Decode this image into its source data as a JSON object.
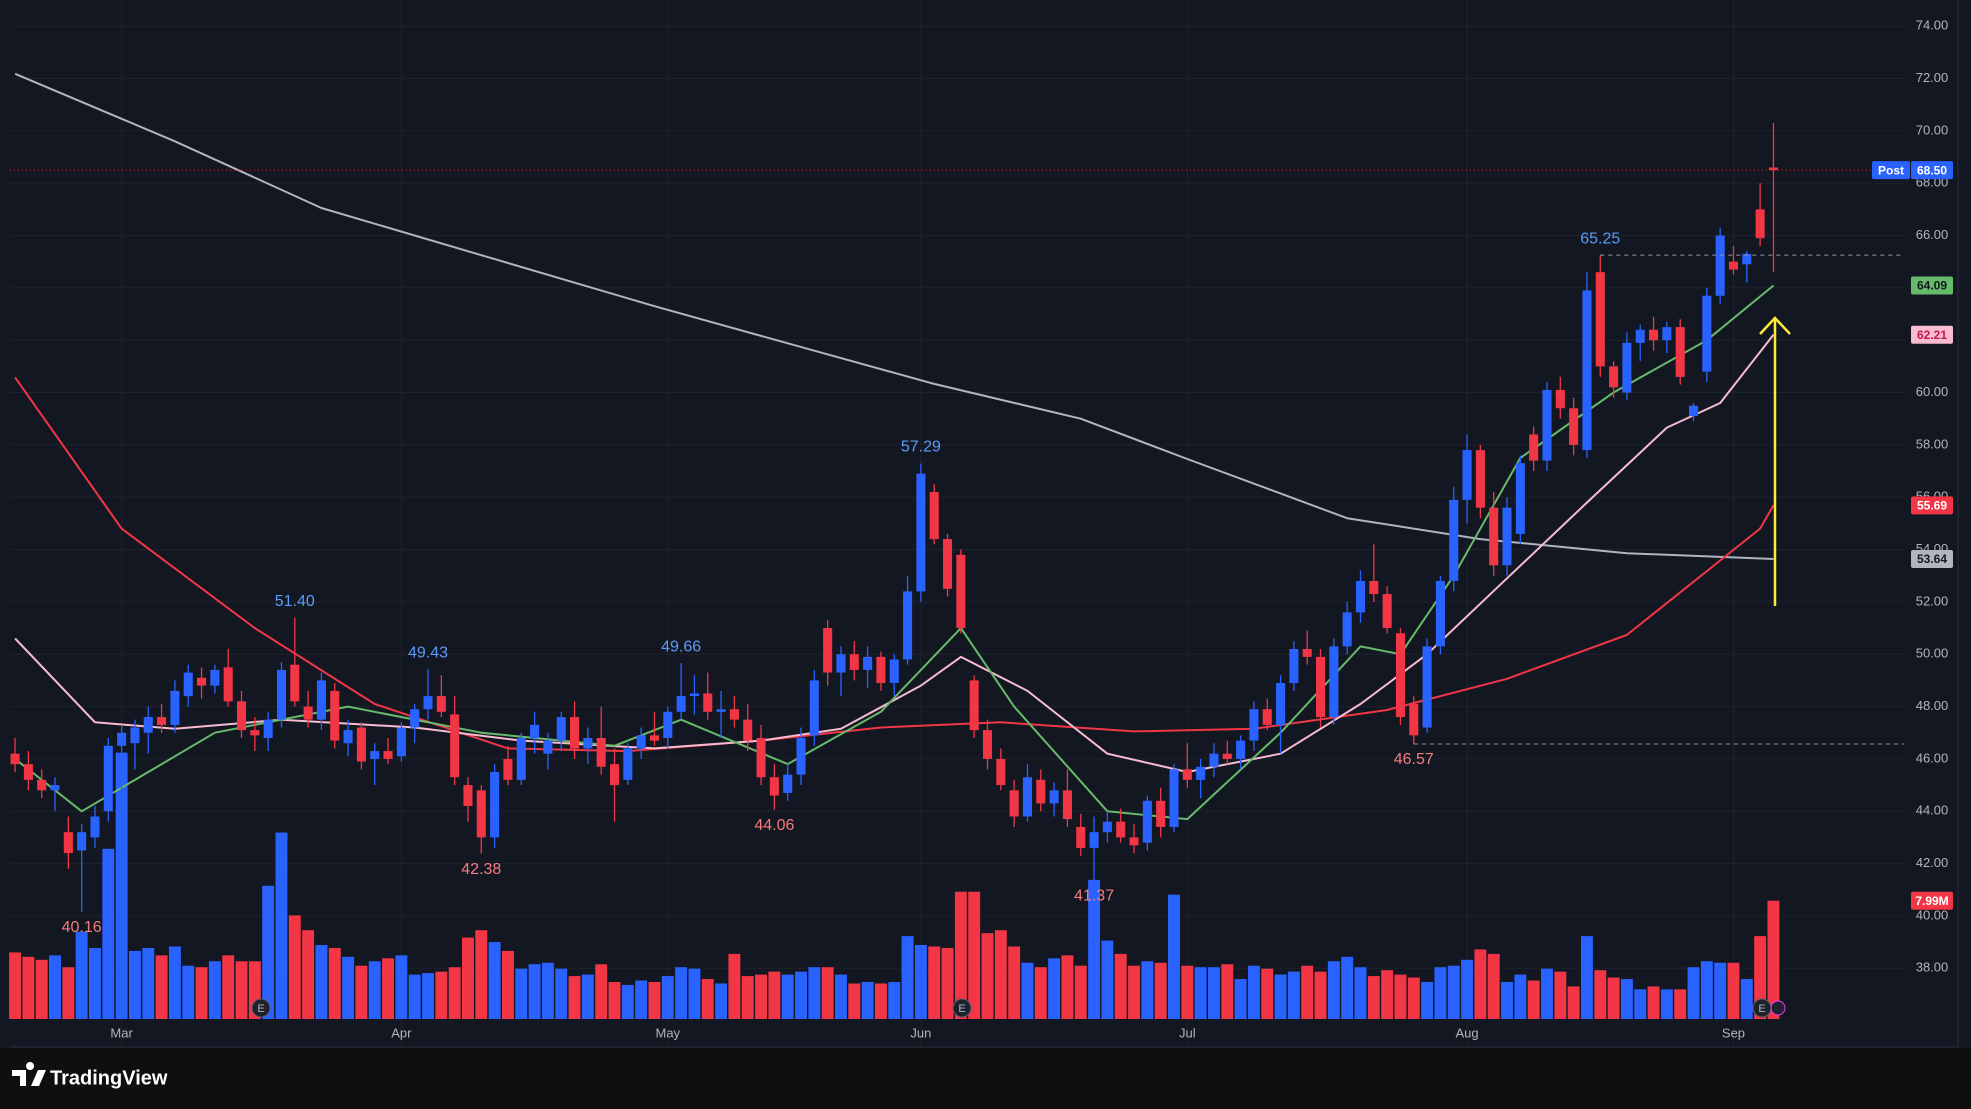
{
  "brand": "TradingView",
  "chart_data": {
    "type": "candlestick",
    "colors": {
      "up": "#2962ff",
      "down": "#f23645"
    },
    "grid": true,
    "xlim": [
      -1.13,
      141.8
    ],
    "xticks": [
      {
        "value": 8,
        "label": "Mar"
      },
      {
        "value": 29,
        "label": "Apr"
      },
      {
        "value": 49,
        "label": "May"
      },
      {
        "value": 68,
        "label": "Jun"
      },
      {
        "value": 88,
        "label": "Jul"
      },
      {
        "value": 109,
        "label": "Aug"
      },
      {
        "value": 129,
        "label": "Sep"
      }
    ],
    "ylim": [
      35.45,
      75.0
    ],
    "yticks": [
      {
        "value": 38,
        "label": "38.00"
      },
      {
        "value": 40,
        "label": "40.00"
      },
      {
        "value": 42,
        "label": "42.00"
      },
      {
        "value": 44,
        "label": "44.00"
      },
      {
        "value": 46,
        "label": "46.00"
      },
      {
        "value": 48,
        "label": "48.00"
      },
      {
        "value": 50,
        "label": "50.00"
      },
      {
        "value": 52,
        "label": "52.00"
      },
      {
        "value": 54,
        "label": "54.00"
      },
      {
        "value": 56,
        "label": "56.00"
      },
      {
        "value": 58,
        "label": "58.00"
      },
      {
        "value": 60,
        "label": "60.00"
      },
      {
        "value": 62,
        "label": "62.00"
      },
      {
        "value": 64,
        "label": "64.00"
      },
      {
        "value": 66,
        "label": "66.00"
      },
      {
        "value": 68,
        "label": "68.00"
      },
      {
        "value": 70,
        "label": "70.00"
      },
      {
        "value": 72,
        "label": "72.00"
      },
      {
        "value": 74,
        "label": "74.00"
      }
    ],
    "ohlc": [
      [
        46.2,
        46.8,
        45.5,
        45.8
      ],
      [
        45.8,
        46.3,
        44.8,
        45.2
      ],
      [
        45.2,
        45.6,
        44.5,
        44.8
      ],
      [
        44.8,
        45.3,
        44.0,
        45.0
      ],
      [
        43.2,
        43.8,
        41.8,
        42.4
      ],
      [
        42.5,
        43.5,
        40.16,
        43.2
      ],
      [
        43.0,
        44.2,
        42.6,
        43.8
      ],
      [
        44.0,
        46.8,
        43.6,
        46.5
      ],
      [
        46.5,
        47.3,
        40.5,
        47.0
      ],
      [
        46.6,
        47.5,
        45.6,
        47.2
      ],
      [
        47.0,
        48.0,
        46.2,
        47.6
      ],
      [
        47.6,
        48.1,
        47.0,
        47.3
      ],
      [
        47.3,
        49.0,
        47.0,
        48.6
      ],
      [
        48.4,
        49.6,
        48.0,
        49.3
      ],
      [
        49.1,
        49.5,
        48.3,
        48.8
      ],
      [
        48.8,
        49.6,
        48.5,
        49.4
      ],
      [
        49.5,
        50.2,
        48.0,
        48.2
      ],
      [
        48.2,
        48.6,
        46.8,
        47.1
      ],
      [
        47.1,
        47.6,
        46.3,
        46.9
      ],
      [
        46.8,
        47.8,
        46.3,
        47.5
      ],
      [
        47.5,
        49.7,
        47.2,
        49.4
      ],
      [
        49.6,
        51.4,
        48.0,
        48.2
      ],
      [
        48.0,
        48.6,
        47.2,
        47.5
      ],
      [
        47.5,
        49.3,
        47.1,
        49.0
      ],
      [
        48.6,
        48.9,
        46.4,
        46.7
      ],
      [
        46.6,
        47.5,
        46.1,
        47.1
      ],
      [
        47.2,
        47.4,
        45.6,
        45.9
      ],
      [
        46.0,
        46.6,
        45.0,
        46.3
      ],
      [
        46.3,
        46.8,
        45.8,
        46.0
      ],
      [
        46.1,
        47.4,
        45.9,
        47.2
      ],
      [
        47.2,
        48.1,
        46.6,
        47.9
      ],
      [
        47.9,
        49.43,
        47.5,
        48.4
      ],
      [
        48.4,
        49.2,
        47.6,
        47.8
      ],
      [
        47.7,
        48.4,
        45.0,
        45.3
      ],
      [
        45.0,
        45.3,
        43.6,
        44.2
      ],
      [
        44.8,
        45.0,
        42.38,
        43.0
      ],
      [
        43.0,
        45.8,
        42.6,
        45.5
      ],
      [
        46.0,
        46.5,
        45.0,
        45.2
      ],
      [
        45.2,
        47.0,
        45.0,
        46.8
      ],
      [
        46.8,
        47.8,
        46.2,
        47.3
      ],
      [
        46.2,
        47.0,
        45.6,
        46.7
      ],
      [
        46.7,
        47.8,
        46.3,
        47.6
      ],
      [
        47.6,
        48.2,
        46.0,
        46.4
      ],
      [
        46.4,
        47.2,
        45.8,
        46.8
      ],
      [
        46.8,
        48.0,
        45.4,
        45.7
      ],
      [
        45.8,
        46.4,
        43.6,
        45.0
      ],
      [
        45.2,
        46.6,
        45.0,
        46.4
      ],
      [
        46.4,
        47.2,
        46.0,
        46.9
      ],
      [
        46.9,
        47.8,
        46.5,
        46.7
      ],
      [
        46.8,
        48.0,
        46.4,
        47.8
      ],
      [
        47.8,
        49.66,
        47.5,
        48.4
      ],
      [
        48.4,
        49.2,
        47.7,
        48.5
      ],
      [
        48.5,
        49.3,
        47.5,
        47.8
      ],
      [
        47.8,
        48.6,
        46.8,
        47.9
      ],
      [
        47.9,
        48.4,
        47.2,
        47.5
      ],
      [
        47.5,
        48.1,
        46.3,
        46.7
      ],
      [
        46.8,
        47.3,
        45.0,
        45.3
      ],
      [
        45.3,
        45.8,
        44.06,
        44.6
      ],
      [
        44.7,
        45.8,
        44.4,
        45.4
      ],
      [
        45.4,
        47.2,
        45.0,
        46.8
      ],
      [
        46.9,
        49.4,
        46.5,
        49.0
      ],
      [
        51.0,
        51.3,
        48.8,
        49.3
      ],
      [
        49.3,
        50.3,
        48.4,
        50.0
      ],
      [
        50.0,
        50.5,
        49.0,
        49.4
      ],
      [
        49.4,
        50.3,
        48.7,
        49.9
      ],
      [
        49.9,
        50.1,
        48.6,
        48.9
      ],
      [
        48.9,
        50.0,
        48.4,
        49.8
      ],
      [
        49.8,
        53.0,
        49.6,
        52.4
      ],
      [
        52.4,
        57.29,
        52.0,
        56.9
      ],
      [
        56.2,
        56.5,
        54.2,
        54.4
      ],
      [
        54.4,
        54.6,
        52.2,
        52.5
      ],
      [
        53.8,
        54.0,
        50.8,
        51.0
      ],
      [
        49.0,
        49.2,
        46.8,
        47.1
      ],
      [
        47.1,
        47.5,
        45.6,
        46.0
      ],
      [
        46.0,
        46.4,
        44.8,
        45.0
      ],
      [
        44.8,
        45.2,
        43.4,
        43.8
      ],
      [
        43.8,
        45.8,
        43.6,
        45.3
      ],
      [
        45.2,
        45.6,
        44.0,
        44.3
      ],
      [
        44.3,
        45.1,
        43.8,
        44.8
      ],
      [
        44.8,
        45.6,
        43.4,
        43.7
      ],
      [
        43.4,
        43.9,
        42.3,
        42.6
      ],
      [
        42.6,
        43.8,
        41.37,
        43.2
      ],
      [
        43.2,
        44.0,
        42.8,
        43.6
      ],
      [
        43.6,
        44.1,
        42.8,
        43.0
      ],
      [
        43.0,
        43.5,
        42.4,
        42.7
      ],
      [
        42.8,
        44.6,
        42.5,
        44.4
      ],
      [
        44.4,
        44.9,
        43.0,
        43.4
      ],
      [
        43.4,
        45.8,
        43.2,
        45.6
      ],
      [
        45.6,
        46.6,
        44.9,
        45.2
      ],
      [
        45.2,
        46.0,
        44.5,
        45.7
      ],
      [
        45.7,
        46.6,
        45.3,
        46.2
      ],
      [
        46.2,
        46.7,
        45.8,
        46.0
      ],
      [
        46.0,
        46.9,
        45.6,
        46.7
      ],
      [
        46.7,
        48.2,
        46.3,
        47.9
      ],
      [
        47.9,
        48.3,
        47.1,
        47.3
      ],
      [
        47.3,
        49.2,
        46.2,
        48.9
      ],
      [
        48.9,
        50.5,
        48.6,
        50.2
      ],
      [
        50.2,
        50.9,
        49.6,
        49.9
      ],
      [
        49.9,
        50.2,
        47.2,
        47.6
      ],
      [
        47.6,
        50.6,
        47.3,
        50.3
      ],
      [
        50.3,
        52.0,
        50.0,
        51.6
      ],
      [
        51.6,
        53.2,
        51.2,
        52.8
      ],
      [
        52.8,
        54.2,
        52.0,
        52.3
      ],
      [
        52.3,
        52.6,
        50.8,
        51.0
      ],
      [
        50.8,
        51.0,
        47.3,
        47.6
      ],
      [
        48.1,
        48.4,
        46.57,
        46.9
      ],
      [
        47.2,
        50.6,
        47.0,
        50.3
      ],
      [
        50.3,
        53.0,
        50.0,
        52.8
      ],
      [
        52.8,
        56.4,
        52.4,
        55.9
      ],
      [
        55.9,
        58.4,
        55.0,
        57.8
      ],
      [
        57.8,
        58.0,
        55.2,
        55.6
      ],
      [
        55.6,
        56.2,
        53.0,
        53.4
      ],
      [
        53.4,
        56.0,
        53.0,
        55.6
      ],
      [
        54.6,
        57.6,
        54.2,
        57.3
      ],
      [
        58.4,
        58.7,
        57.0,
        57.4
      ],
      [
        57.4,
        60.4,
        57.0,
        60.1
      ],
      [
        60.1,
        60.6,
        59.0,
        59.4
      ],
      [
        59.4,
        59.8,
        57.6,
        58.0
      ],
      [
        57.8,
        64.6,
        57.5,
        63.9
      ],
      [
        64.6,
        65.25,
        60.6,
        61.0
      ],
      [
        61.0,
        61.2,
        59.8,
        60.2
      ],
      [
        60.0,
        62.3,
        59.7,
        61.9
      ],
      [
        61.9,
        62.6,
        61.2,
        62.4
      ],
      [
        62.4,
        62.9,
        61.6,
        62.0
      ],
      [
        62.0,
        62.7,
        61.5,
        62.5
      ],
      [
        62.5,
        62.8,
        60.3,
        60.6
      ],
      [
        59.1,
        59.6,
        58.9,
        59.5
      ],
      [
        60.8,
        64.0,
        60.4,
        63.7
      ],
      [
        63.7,
        66.3,
        63.4,
        66.0
      ],
      [
        65.0,
        65.6,
        64.5,
        64.7
      ],
      [
        64.9,
        65.4,
        64.2,
        65.3
      ],
      [
        67.0,
        68.0,
        65.6,
        65.9
      ],
      [
        68.6,
        70.3,
        64.6,
        68.5
      ]
    ],
    "volume": [
      4.5,
      4.2,
      4.0,
      4.3,
      3.5,
      5.9,
      4.8,
      11.5,
      18.0,
      4.6,
      4.8,
      4.3,
      4.9,
      3.6,
      3.5,
      3.9,
      4.3,
      3.9,
      3.9,
      9.0,
      12.6,
      7.0,
      6.0,
      5.0,
      4.8,
      4.2,
      3.6,
      3.9,
      4.1,
      4.3,
      3.0,
      3.1,
      3.2,
      3.5,
      5.5,
      6.0,
      5.2,
      4.6,
      3.4,
      3.7,
      3.8,
      3.4,
      2.9,
      3.0,
      3.7,
      2.5,
      2.3,
      2.6,
      2.5,
      2.9,
      3.5,
      3.4,
      2.7,
      2.4,
      4.4,
      2.9,
      3.0,
      3.2,
      3.0,
      3.2,
      3.5,
      3.5,
      3.0,
      2.4,
      2.5,
      2.4,
      2.5,
      5.6,
      5.0,
      4.9,
      4.8,
      8.6,
      8.6,
      5.8,
      6.0,
      4.9,
      3.8,
      3.5,
      4.1,
      4.3,
      3.6,
      9.4,
      5.3,
      4.4,
      3.6,
      3.9,
      3.8,
      8.4,
      3.6,
      3.5,
      3.5,
      3.7,
      2.7,
      3.6,
      3.4,
      3.0,
      3.2,
      3.6,
      3.2,
      3.9,
      4.2,
      3.5,
      2.9,
      3.3,
      3.0,
      2.8,
      2.5,
      3.5,
      3.6,
      4.0,
      4.7,
      4.4,
      2.5,
      3.0,
      2.6,
      3.4,
      3.2,
      2.2,
      5.6,
      3.3,
      2.8,
      2.7,
      2.0,
      2.2,
      2.0,
      2.0,
      3.5,
      3.9,
      3.8,
      3.8,
      2.7,
      5.6,
      7.99
    ],
    "volume_last_label": "7.99M",
    "moving_averages": [
      {
        "color": "#b2b5be",
        "label_text": "#131722",
        "x": [
          0,
          12,
          23,
          36,
          48,
          60,
          69,
          80,
          88,
          100,
          110,
          121,
          132
        ],
        "values": [
          72.18,
          69.6,
          67.05,
          65.1,
          63.3,
          61.6,
          60.33,
          59.0,
          57.46,
          55.2,
          54.4,
          53.86,
          53.64
        ]
      },
      {
        "color": "#f23645",
        "label_text": "#ffffff",
        "x": [
          0,
          8,
          18,
          27,
          37,
          46,
          56,
          65,
          74,
          84,
          93,
          103,
          112,
          121,
          131,
          132
        ],
        "values": [
          60.58,
          54.8,
          51.0,
          48.1,
          46.4,
          46.3,
          46.7,
          47.2,
          47.4,
          47.05,
          47.15,
          47.87,
          49.06,
          50.74,
          54.8,
          55.69
        ]
      },
      {
        "color": "#f8bbd0",
        "label_text": "#c2185b",
        "x": [
          0,
          6,
          12,
          20,
          30,
          38,
          48,
          56,
          62,
          68,
          71,
          76,
          82,
          88,
          95,
          101,
          106,
          112,
          118,
          124,
          128,
          132
        ],
        "values": [
          50.6,
          47.4,
          47.15,
          47.5,
          47.2,
          46.7,
          46.4,
          46.7,
          47.15,
          48.8,
          49.9,
          48.6,
          46.2,
          45.5,
          46.2,
          48.1,
          50.0,
          52.9,
          55.8,
          58.66,
          59.6,
          62.21
        ]
      },
      {
        "color": "#66bb6a",
        "label_text": "#131722",
        "x": [
          0,
          5,
          15,
          25,
          35,
          45,
          50,
          58,
          65,
          71,
          75,
          82,
          88,
          95,
          101,
          104,
          108,
          113,
          120,
          127,
          132
        ],
        "values": [
          46.0,
          44.0,
          47.0,
          48.0,
          47.0,
          46.5,
          47.5,
          45.8,
          47.8,
          51.0,
          48.0,
          44.0,
          43.7,
          47.0,
          50.3,
          50.0,
          53.0,
          57.5,
          60.0,
          62.0,
          64.09
        ]
      }
    ],
    "annotations": [
      {
        "kind": "high",
        "index": 21,
        "value": 51.4,
        "label": "51.40"
      },
      {
        "kind": "high",
        "index": 31,
        "value": 49.43,
        "label": "49.43"
      },
      {
        "kind": "high",
        "index": 50,
        "value": 49.66,
        "label": "49.66"
      },
      {
        "kind": "high",
        "index": 68,
        "value": 57.29,
        "label": "57.29"
      },
      {
        "kind": "high",
        "index": 119,
        "value": 65.25,
        "label": "65.25",
        "extend": true
      },
      {
        "kind": "low",
        "index": 5,
        "value": 40.16,
        "label": "40.16"
      },
      {
        "kind": "low",
        "index": 35,
        "value": 42.38,
        "label": "42.38"
      },
      {
        "kind": "low",
        "index": 57,
        "value": 44.06,
        "label": "44.06"
      },
      {
        "kind": "low",
        "index": 81,
        "value": 41.37,
        "label": "41.37"
      },
      {
        "kind": "low",
        "index": 105,
        "value": 46.57,
        "label": "46.57",
        "extend": true
      }
    ],
    "last_price": {
      "value": 68.5,
      "label": "68.50",
      "session": "Post"
    },
    "earnings_marker": "E"
  }
}
